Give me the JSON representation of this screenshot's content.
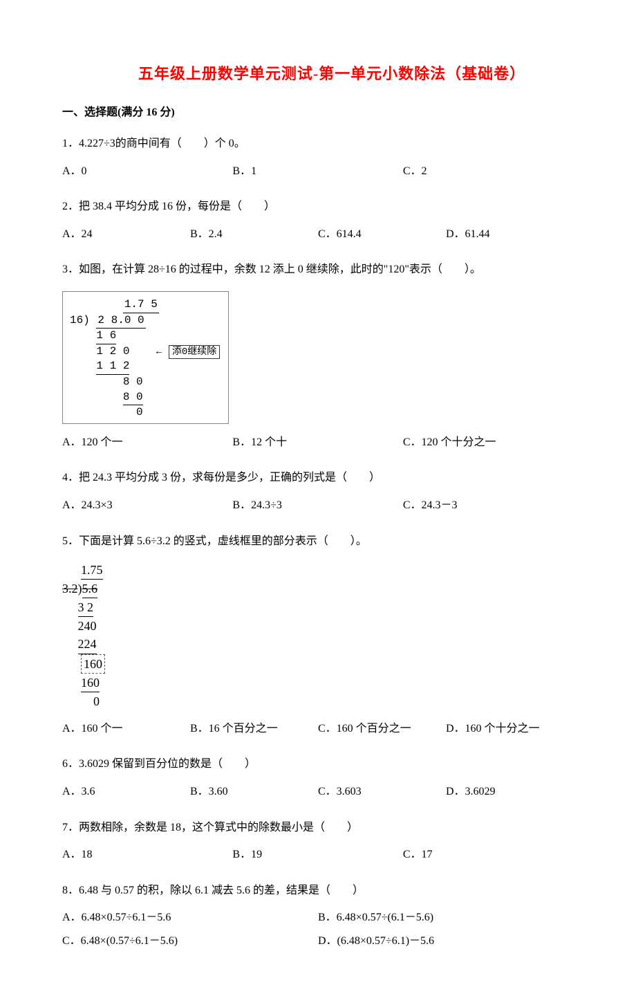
{
  "title": "五年级上册数学单元测试-第一单元小数除法（基础卷）",
  "section_header": "一、选择题(满分 16 分)",
  "questions": [
    {
      "num": "1",
      "text": "1．4.227÷3的商中间有（　　）个 0。",
      "options": [
        "A．0",
        "B．1",
        "C．2"
      ],
      "cols": 3
    },
    {
      "num": "2",
      "text": "2．把 38.4 平均分成 16 份，每份是（　　）",
      "options": [
        "A．24",
        "B．2.4",
        "C．614.4",
        "D．61.44"
      ],
      "cols": 4
    },
    {
      "num": "3",
      "text": "3．如图，在计算 28÷16 的过程中，余数 12 添上 0 继续除，此时的\"120\"表示（　　）。",
      "figure": {
        "quotient": "1.7 5",
        "divisor": "16",
        "dividend": "2 8.0 0",
        "lines": [
          "1 6",
          "1 2 0",
          "1 1 2",
          "8 0",
          "8 0",
          "0"
        ],
        "annotation": "添0继续除",
        "arrow": "←"
      },
      "options": [
        "A．120 个一",
        "B．12 个十",
        "C．120 个十分之一"
      ],
      "cols": 3
    },
    {
      "num": "4",
      "text": "4．把 24.3 平均分成 3 份，求每份是多少，正确的列式是（　　）",
      "options": [
        "A．24.3×3",
        "B．24.3÷3",
        "C．24.3－3"
      ],
      "cols": 3
    },
    {
      "num": "5",
      "text": "5．下面是计算 5.6÷3.2 的竖式，虚线框里的部分表示（　　）。",
      "figure2": {
        "quotient": "1.75",
        "divisor": "3.2",
        "dividend": "5.6",
        "lines": [
          "3 2",
          "240",
          "224",
          "160",
          "160",
          "0"
        ],
        "dashed_line": "160"
      },
      "options": [
        "A．160 个一",
        "B．16 个百分之一",
        "C．160 个百分之一",
        "D．160 个十分之一"
      ],
      "cols": 4
    },
    {
      "num": "6",
      "text": "6．3.6029 保留到百分位的数是（　　）",
      "options": [
        "A．3.6",
        "B．3.60",
        "C．3.603",
        "D．3.6029"
      ],
      "cols": 4
    },
    {
      "num": "7",
      "text": "7．两数相除，余数是 18，这个算式中的除数最小是（　　）",
      "options": [
        "A．18",
        "B．19",
        "C．17"
      ],
      "cols": 3
    },
    {
      "num": "8",
      "text": "8．6.48 与 0.57 的积，除以 6.1 减去 5.6 的差，结果是（　　）",
      "options": [
        "A．6.48×0.57÷6.1－5.6",
        "B．6.48×0.57÷(6.1－5.6)",
        "C．6.48×(0.57÷6.1－5.6)",
        "D．(6.48×0.57÷6.1)－5.6"
      ],
      "cols": 2
    }
  ]
}
